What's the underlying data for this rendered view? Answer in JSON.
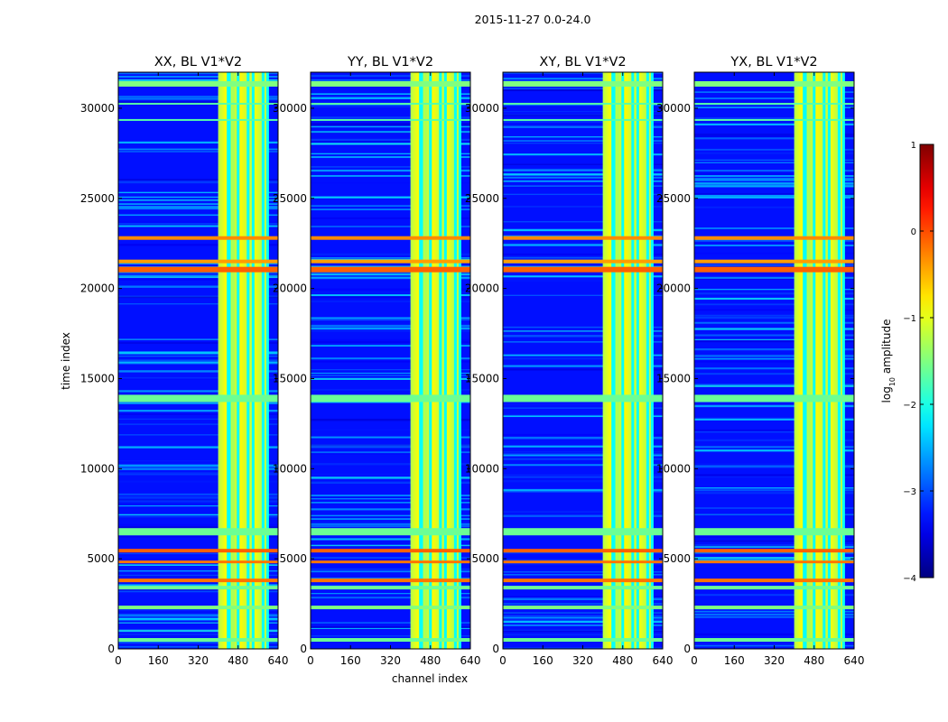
{
  "suptitle": "2015-11-27 0.0-24.0",
  "chart_data": {
    "type": "heatmap",
    "panels": [
      {
        "title": "XX, BL V1*V2",
        "key": "XX"
      },
      {
        "title": "YY, BL V1*V2",
        "key": "YY"
      },
      {
        "title": "XY, BL V1*V2",
        "key": "XY"
      },
      {
        "title": "YX, BL V1*V2",
        "key": "YX"
      }
    ],
    "xlabel": "channel index",
    "ylabel": "time index",
    "xlim": [
      0,
      640
    ],
    "ylim": [
      0,
      32000
    ],
    "xticks": [
      0,
      160,
      320,
      480,
      640
    ],
    "xtick_labels": [
      "0",
      "160",
      "320",
      "480",
      "640"
    ],
    "yticks": [
      0,
      5000,
      10000,
      15000,
      20000,
      25000,
      30000
    ],
    "ytick_labels": [
      "0",
      "5000",
      "10000",
      "15000",
      "20000",
      "25000",
      "30000"
    ],
    "colorbar": {
      "label": "log10 amplitude",
      "label_base": "log",
      "label_sub": "10",
      "label_rest": " amplitude",
      "vmin": -4,
      "vmax": 1,
      "ticks": [
        -4,
        -3,
        -2,
        -1,
        0,
        1
      ],
      "tick_labels": [
        "−4",
        "−3",
        "−2",
        "−1",
        "0",
        "1"
      ],
      "colormap": "jet"
    },
    "background_log_amplitude": -3.3,
    "bright_channel_band": {
      "start": 400,
      "end": 600,
      "log_amplitude": -1.1
    },
    "bright_channels": [
      440,
      445,
      480,
      520,
      540,
      580,
      598
    ],
    "rfi_time_bands": [
      {
        "start": 20900,
        "end": 21200,
        "log_amplitude": -0.1
      },
      {
        "start": 5350,
        "end": 5550,
        "log_amplitude": -0.1
      },
      {
        "start": 4750,
        "end": 4900,
        "log_amplitude": -0.2
      },
      {
        "start": 3700,
        "end": 3900,
        "log_amplitude": -0.2
      },
      {
        "start": 22700,
        "end": 22900,
        "log_amplitude": -0.3
      },
      {
        "start": 21400,
        "end": 21600,
        "log_amplitude": -0.4
      },
      {
        "start": 13700,
        "end": 14100,
        "log_amplitude": -1.6
      },
      {
        "start": 6300,
        "end": 6700,
        "log_amplitude": -1.6
      },
      {
        "start": 3300,
        "end": 3500,
        "log_amplitude": -1.6
      },
      {
        "start": 2200,
        "end": 2400,
        "log_amplitude": -1.5
      },
      {
        "start": 400,
        "end": 600,
        "log_amplitude": -1.6
      },
      {
        "start": 31200,
        "end": 31500,
        "log_amplitude": -1.5
      },
      {
        "start": 30200,
        "end": 30300,
        "log_amplitude": -1.7
      },
      {
        "start": 29300,
        "end": 29400,
        "log_amplitude": -1.7
      }
    ]
  }
}
